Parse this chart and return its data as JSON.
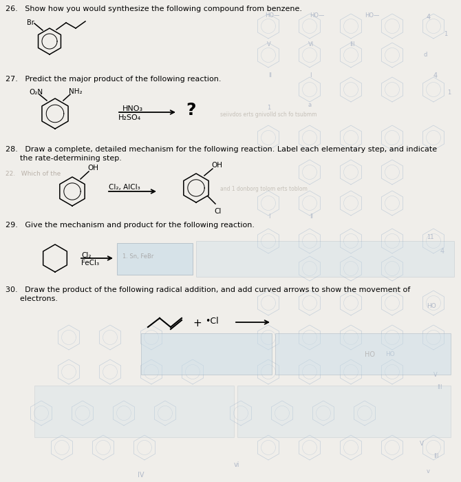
{
  "bg_color": "#e8e8ee",
  "paper_color": "#f0eeea",
  "q26_text": "26.   Show how you would synthesize the following compound from benzene.",
  "q27_text": "27.   Predict the major product of the following reaction.",
  "q28_text1": "28.   Draw a complete, detailed mechanism for the following reaction. Label each elementary step, and indicate",
  "q28_text2": "      the rate-determining step.",
  "q29_text": "29.   Give the mechanism and product for the following reaction.",
  "q30_text1": "30.   Draw the product of the following radical addition, and add curved arrows to show the movement of",
  "q30_text2": "      electrons.",
  "font_size_q": 8.0,
  "font_size_chem": 7.0,
  "font_size_small": 6.5,
  "answer_box_color": "#c8dce8",
  "answer_box2_color": "#ccdccc",
  "faded_ring_color": "#c0ccd8",
  "faded_text_color": "#b0b8c8"
}
